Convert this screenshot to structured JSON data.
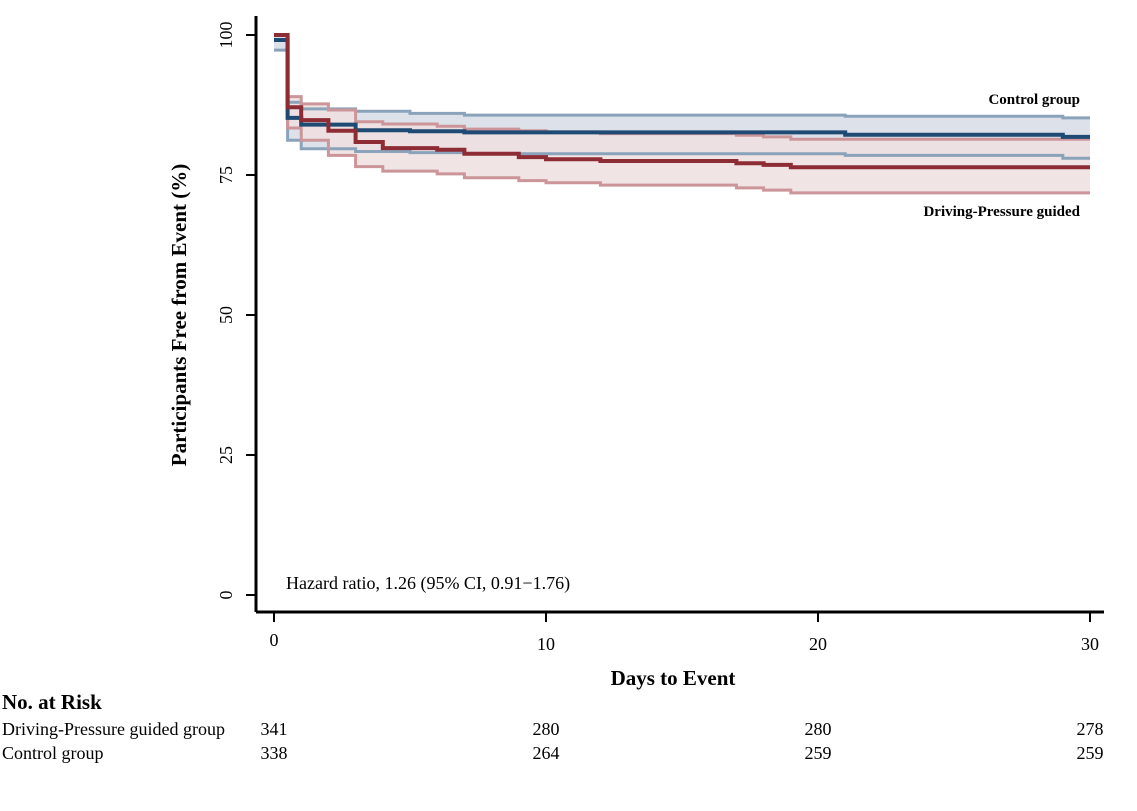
{
  "chart_data": {
    "type": "line",
    "subtype": "kaplan-meier",
    "title": "",
    "xlabel": "Days to Event",
    "ylabel": "Participants Free from Event (%)",
    "xlim": [
      0,
      30
    ],
    "ylim": [
      0,
      100
    ],
    "xticks": [
      0,
      10,
      20,
      30
    ],
    "yticks": [
      0,
      25,
      50,
      75,
      100
    ],
    "grid": false,
    "annotation": "Hazard ratio, 1.26 (95% CI, 0.91−1.76)",
    "series": [
      {
        "name": "Control group",
        "label": "Control group",
        "color": "#1f4a73",
        "ci_line_color": "#8aa3bb",
        "ci_fill_color": "#dde2ea",
        "steps": [
          [
            0,
            99.1
          ],
          [
            0.5,
            85.2
          ],
          [
            1,
            84.0
          ],
          [
            3,
            83.0
          ],
          [
            5,
            82.8
          ],
          [
            7,
            82.6
          ],
          [
            21,
            82.2
          ],
          [
            29,
            81.8
          ],
          [
            30,
            81.8
          ]
        ],
        "ci_upper": [
          [
            0,
            100
          ],
          [
            0.5,
            88.0
          ],
          [
            1,
            86.8
          ],
          [
            3,
            86.4
          ],
          [
            5,
            86.0
          ],
          [
            7,
            85.7
          ],
          [
            21,
            85.5
          ],
          [
            29,
            85.2
          ],
          [
            30,
            85.2
          ]
        ],
        "ci_lower": [
          [
            0,
            97.3
          ],
          [
            0.5,
            81.2
          ],
          [
            1,
            79.7
          ],
          [
            3,
            79.2
          ],
          [
            5,
            79.0
          ],
          [
            7,
            78.8
          ],
          [
            21,
            78.5
          ],
          [
            29,
            78.0
          ],
          [
            30,
            78.0
          ]
        ]
      },
      {
        "name": "Driving-Pressure guided",
        "label": "Driving-Pressure guided",
        "color": "#8e2c35",
        "ci_line_color": "#cc9599",
        "ci_fill_color": "#efdfe0",
        "steps": [
          [
            0,
            100
          ],
          [
            0.5,
            87.1
          ],
          [
            1,
            84.8
          ],
          [
            2,
            82.9
          ],
          [
            3,
            80.9
          ],
          [
            4,
            79.8
          ],
          [
            6,
            79.5
          ],
          [
            7,
            78.8
          ],
          [
            9,
            78.2
          ],
          [
            10,
            77.8
          ],
          [
            12,
            77.5
          ],
          [
            17,
            77.1
          ],
          [
            18,
            76.8
          ],
          [
            19,
            76.4
          ],
          [
            30,
            76.4
          ]
        ],
        "ci_upper": [
          [
            0,
            100
          ],
          [
            0.5,
            89.0
          ],
          [
            1,
            87.7
          ],
          [
            2,
            86.6
          ],
          [
            3,
            84.5
          ],
          [
            4,
            84.1
          ],
          [
            6,
            83.7
          ],
          [
            7,
            83.2
          ],
          [
            9,
            82.9
          ],
          [
            10,
            82.7
          ],
          [
            12,
            82.4
          ],
          [
            17,
            82.1
          ],
          [
            18,
            81.8
          ],
          [
            19,
            81.4
          ],
          [
            30,
            81.4
          ]
        ],
        "ci_lower": [
          [
            0,
            100
          ],
          [
            0.5,
            83.4
          ],
          [
            1,
            81.2
          ],
          [
            2,
            78.5
          ],
          [
            3,
            76.5
          ],
          [
            4,
            75.7
          ],
          [
            6,
            75.2
          ],
          [
            7,
            74.5
          ],
          [
            9,
            74.0
          ],
          [
            10,
            73.6
          ],
          [
            12,
            73.2
          ],
          [
            17,
            72.7
          ],
          [
            18,
            72.3
          ],
          [
            19,
            71.8
          ],
          [
            30,
            71.8
          ]
        ]
      }
    ]
  },
  "risk_table": {
    "title": "No. at Risk",
    "timepoints": [
      0,
      10,
      20,
      30
    ],
    "rows": [
      {
        "label": "Driving-Pressure guided group",
        "values": [
          "341",
          "280",
          "280",
          "278"
        ]
      },
      {
        "label": "Control group",
        "values": [
          "338",
          "264",
          "259",
          "259"
        ]
      }
    ]
  }
}
